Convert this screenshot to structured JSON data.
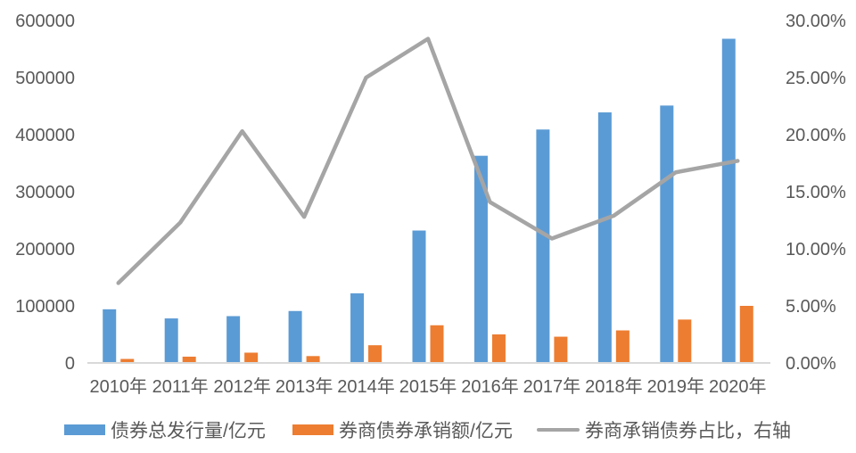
{
  "chart_data": {
    "type": "bar",
    "subtype": "grouped-bars-with-line-overlay",
    "title": "",
    "categories": [
      "2010年",
      "2011年",
      "2012年",
      "2013年",
      "2014年",
      "2015年",
      "2016年",
      "2017年",
      "2018年",
      "2019年",
      "2020年"
    ],
    "series": [
      {
        "name": "债券总发行量/亿元",
        "type": "bar",
        "axis": "left",
        "color": "#5B9BD5",
        "values": [
          94000,
          78000,
          82000,
          91000,
          122000,
          232000,
          363000,
          409000,
          439000,
          451000,
          568000
        ]
      },
      {
        "name": "券商债券承销额/亿元",
        "type": "bar",
        "axis": "left",
        "color": "#ED7D31",
        "values": [
          7000,
          11000,
          18000,
          12000,
          31000,
          66000,
          50000,
          46000,
          57000,
          76000,
          100000
        ]
      },
      {
        "name": "券商承销债券占比，右轴",
        "type": "line",
        "axis": "right",
        "color": "#A5A5A5",
        "values_percent": [
          7.0,
          12.3,
          20.3,
          12.8,
          25.0,
          28.4,
          14.1,
          10.9,
          12.9,
          16.7,
          17.7
        ]
      }
    ],
    "left_axis": {
      "min": 0,
      "max": 600000,
      "step": 100000,
      "tick_labels": [
        "0",
        "100000",
        "200000",
        "300000",
        "400000",
        "500000",
        "600000"
      ]
    },
    "right_axis": {
      "min": 0,
      "max": 30,
      "step": 5,
      "tick_labels": [
        "0.00%",
        "5.00%",
        "10.00%",
        "15.00%",
        "20.00%",
        "25.00%",
        "30.00%"
      ]
    },
    "grid": false,
    "legend_position": "bottom",
    "axis_line_color": "#D9D9D9",
    "text_color": "#595959",
    "background": "#FFFFFF"
  }
}
